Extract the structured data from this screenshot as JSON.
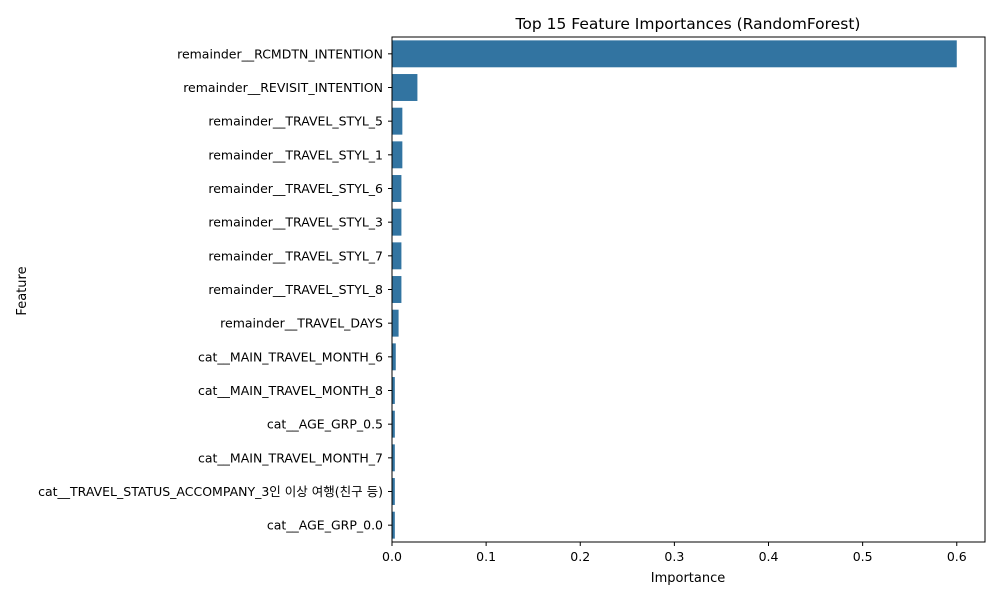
{
  "chart_data": {
    "type": "bar",
    "orientation": "horizontal",
    "title": "Top 15 Feature Importances (RandomForest)",
    "xlabel": "Importance",
    "ylabel": "Feature",
    "xlim": [
      0,
      0.63
    ],
    "xticks": [
      0.0,
      0.1,
      0.2,
      0.3,
      0.4,
      0.5,
      0.6
    ],
    "xtick_labels": [
      "0.0",
      "0.1",
      "0.2",
      "0.3",
      "0.4",
      "0.5",
      "0.6"
    ],
    "grid": false,
    "legend": "none",
    "bar_color": "#3274a1",
    "categories": [
      "remainder__RCMDTN_INTENTION",
      "remainder__REVISIT_INTENTION",
      "remainder__TRAVEL_STYL_5",
      "remainder__TRAVEL_STYL_1",
      "remainder__TRAVEL_STYL_6",
      "remainder__TRAVEL_STYL_3",
      "remainder__TRAVEL_STYL_7",
      "remainder__TRAVEL_STYL_8",
      "remainder__TRAVEL_DAYS",
      "cat__MAIN_TRAVEL_MONTH_6",
      "cat__MAIN_TRAVEL_MONTH_8",
      "cat__AGE_GRP_0.5",
      "cat__MAIN_TRAVEL_MONTH_7",
      "cat__TRAVEL_STATUS_ACCOMPANY_3인 이상 여행(친구 등)",
      "cat__AGE_GRP_0.0"
    ],
    "values": [
      0.6,
      0.027,
      0.011,
      0.011,
      0.01,
      0.01,
      0.01,
      0.01,
      0.007,
      0.004,
      0.003,
      0.003,
      0.003,
      0.003,
      0.003
    ]
  }
}
